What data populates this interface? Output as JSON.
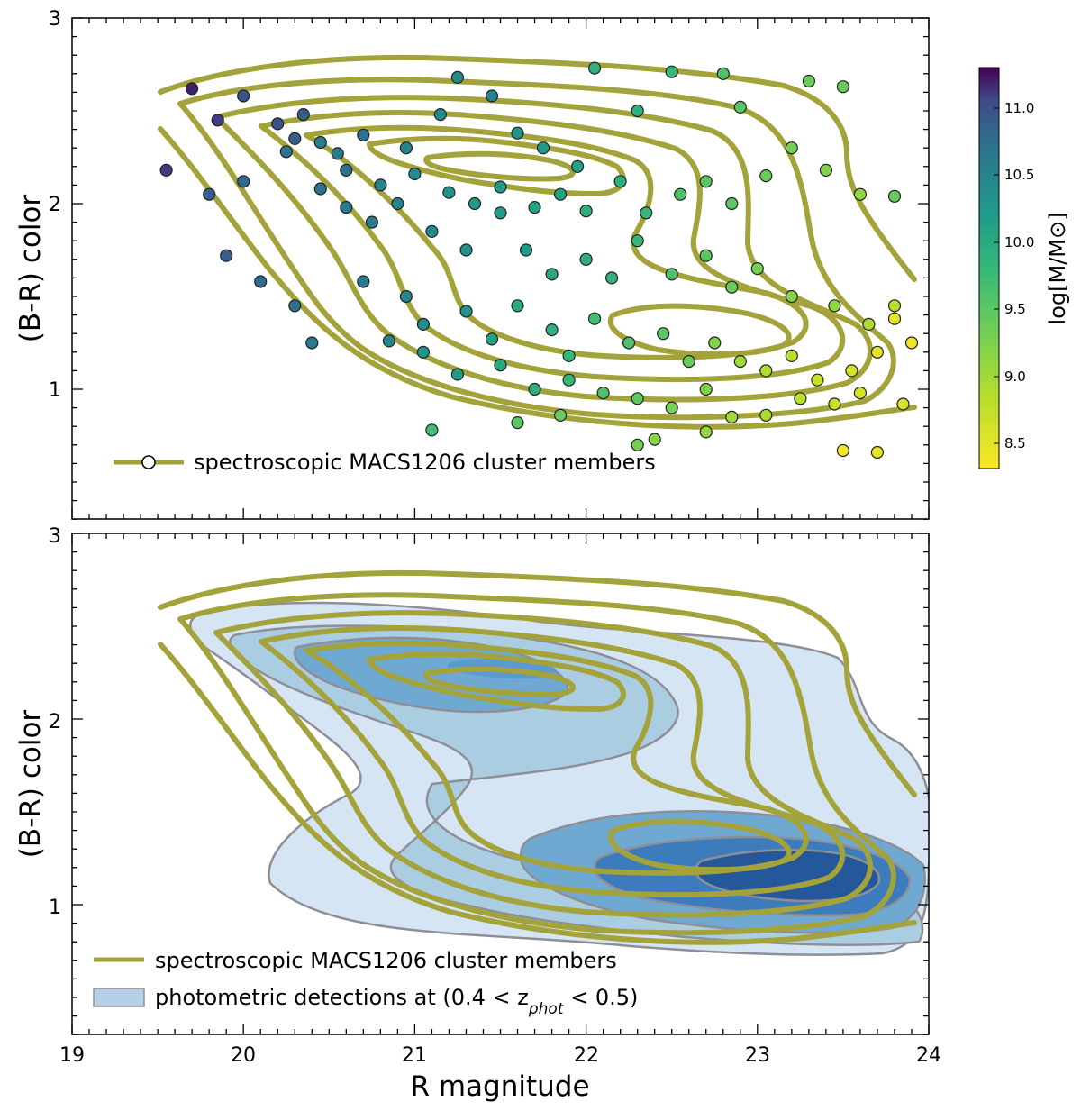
{
  "chart_data": [
    {
      "type": "scatter",
      "panel": "top",
      "xlim": [
        19,
        24
      ],
      "ylim": [
        0.3,
        3.0
      ],
      "ylabel": "(B-R) color",
      "yticks": [
        1,
        2,
        3
      ],
      "legend": {
        "label": "spectroscopic MACS1206 cluster members",
        "placement": "lower-left"
      },
      "contour_color": "#a4a33b",
      "colorbar": {
        "label": "log[M/M⊙]",
        "range": [
          8.3,
          11.3
        ],
        "ticks": [
          "8.5",
          "9.0",
          "9.5",
          "10.0",
          "10.5",
          "11.0"
        ],
        "colormap": "viridis_r"
      },
      "contour_levels": [
        [
          [
            19.5,
            2.6
          ],
          [
            20.0,
            2.72
          ],
          [
            21.0,
            2.78
          ],
          [
            22.0,
            2.75
          ],
          [
            22.8,
            2.6
          ],
          [
            23.5,
            2.3
          ],
          [
            23.8,
            1.8
          ],
          [
            23.95,
            1.4
          ]
        ],
        [
          [
            19.5,
            2.25
          ],
          [
            19.75,
            1.9
          ],
          [
            20.0,
            1.55
          ],
          [
            20.3,
            1.3
          ],
          [
            20.5,
            1.1
          ],
          [
            21.0,
            0.96
          ],
          [
            22.0,
            0.82
          ],
          [
            23.0,
            0.74
          ],
          [
            23.6,
            0.78
          ],
          [
            23.95,
            0.9
          ]
        ]
      ],
      "points": [
        [
          19.7,
          2.62,
          11.2
        ],
        [
          19.85,
          2.45,
          11.1
        ],
        [
          20.0,
          2.58,
          11.0
        ],
        [
          20.2,
          2.43,
          11.0
        ],
        [
          20.35,
          2.48,
          10.9
        ],
        [
          19.55,
          2.18,
          11.1
        ],
        [
          19.8,
          2.05,
          10.9
        ],
        [
          20.0,
          2.12,
          10.8
        ],
        [
          20.25,
          2.28,
          10.7
        ],
        [
          20.55,
          2.27,
          10.6
        ],
        [
          20.7,
          2.37,
          10.7
        ],
        [
          20.95,
          2.3,
          10.5
        ],
        [
          21.15,
          2.48,
          10.4
        ],
        [
          21.25,
          2.68,
          10.4
        ],
        [
          21.45,
          2.58,
          10.5
        ],
        [
          21.6,
          2.38,
          10.3
        ],
        [
          21.75,
          2.3,
          10.2
        ],
        [
          21.95,
          2.2,
          10.1
        ],
        [
          22.05,
          2.73,
          9.9
        ],
        [
          22.3,
          2.5,
          9.9
        ],
        [
          22.5,
          2.71,
          9.8
        ],
        [
          22.8,
          2.7,
          9.6
        ],
        [
          22.9,
          2.52,
          9.5
        ],
        [
          23.3,
          2.66,
          9.4
        ],
        [
          23.5,
          2.63,
          9.4
        ],
        [
          20.3,
          2.35,
          10.9
        ],
        [
          20.45,
          2.33,
          10.6
        ],
        [
          20.6,
          2.18,
          10.7
        ],
        [
          20.8,
          2.1,
          10.5
        ],
        [
          21.0,
          2.16,
          10.4
        ],
        [
          21.2,
          2.06,
          10.3
        ],
        [
          21.35,
          2.0,
          10.2
        ],
        [
          21.5,
          2.09,
          10.2
        ],
        [
          21.7,
          1.98,
          10.1
        ],
        [
          21.85,
          2.05,
          10.1
        ],
        [
          22.0,
          1.96,
          9.9
        ],
        [
          22.2,
          2.12,
          9.9
        ],
        [
          22.35,
          1.95,
          9.8
        ],
        [
          22.55,
          2.05,
          9.6
        ],
        [
          22.7,
          2.12,
          9.5
        ],
        [
          22.85,
          2.0,
          9.5
        ],
        [
          23.05,
          2.15,
          9.4
        ],
        [
          23.2,
          2.3,
          9.3
        ],
        [
          23.4,
          2.18,
          9.2
        ],
        [
          23.6,
          2.05,
          9.1
        ],
        [
          20.45,
          2.08,
          10.7
        ],
        [
          20.6,
          1.98,
          10.6
        ],
        [
          20.75,
          1.9,
          10.6
        ],
        [
          20.9,
          2.0,
          10.5
        ],
        [
          21.1,
          1.85,
          10.4
        ],
        [
          21.3,
          1.75,
          10.3
        ],
        [
          21.5,
          1.95,
          10.2
        ],
        [
          21.65,
          1.75,
          10.2
        ],
        [
          21.8,
          1.62,
          10.0
        ],
        [
          22.0,
          1.7,
          9.9
        ],
        [
          22.15,
          1.6,
          9.9
        ],
        [
          22.3,
          1.8,
          9.8
        ],
        [
          22.5,
          1.62,
          9.6
        ],
        [
          22.7,
          1.72,
          9.5
        ],
        [
          22.85,
          1.55,
          9.4
        ],
        [
          23.0,
          1.65,
          9.3
        ],
        [
          23.2,
          1.5,
          9.2
        ],
        [
          23.45,
          1.45,
          9.1
        ],
        [
          23.65,
          1.35,
          8.9
        ],
        [
          23.8,
          1.45,
          8.8
        ],
        [
          19.9,
          1.72,
          10.9
        ],
        [
          20.1,
          1.58,
          10.8
        ],
        [
          20.3,
          1.45,
          10.7
        ],
        [
          20.4,
          1.25,
          10.6
        ],
        [
          20.7,
          1.58,
          10.6
        ],
        [
          20.95,
          1.5,
          10.5
        ],
        [
          21.05,
          1.35,
          10.4
        ],
        [
          21.3,
          1.42,
          10.3
        ],
        [
          21.45,
          1.27,
          10.1
        ],
        [
          21.6,
          1.45,
          10.0
        ],
        [
          21.8,
          1.32,
          9.9
        ],
        [
          21.9,
          1.18,
          9.8
        ],
        [
          22.05,
          1.38,
          9.7
        ],
        [
          22.25,
          1.25,
          9.6
        ],
        [
          22.45,
          1.3,
          9.5
        ],
        [
          22.6,
          1.15,
          9.4
        ],
        [
          22.75,
          1.25,
          9.2
        ],
        [
          22.9,
          1.15,
          9.0
        ],
        [
          23.05,
          1.1,
          8.9
        ],
        [
          23.2,
          1.18,
          8.8
        ],
        [
          23.35,
          1.05,
          8.7
        ],
        [
          23.55,
          1.1,
          8.6
        ],
        [
          23.7,
          1.2,
          8.5
        ],
        [
          23.9,
          1.25,
          8.4
        ],
        [
          23.8,
          1.38,
          8.5
        ],
        [
          20.85,
          1.26,
          10.5
        ],
        [
          21.05,
          1.2,
          10.3
        ],
        [
          21.25,
          1.08,
          10.2
        ],
        [
          21.5,
          1.13,
          10.0
        ],
        [
          21.7,
          1.0,
          9.9
        ],
        [
          21.9,
          1.05,
          9.8
        ],
        [
          22.1,
          0.98,
          9.6
        ],
        [
          22.3,
          0.95,
          9.5
        ],
        [
          22.5,
          0.9,
          9.3
        ],
        [
          22.7,
          1.0,
          9.2
        ],
        [
          22.85,
          0.85,
          9.0
        ],
        [
          23.05,
          0.86,
          8.9
        ],
        [
          23.25,
          0.95,
          8.8
        ],
        [
          23.45,
          0.92,
          8.7
        ],
        [
          23.6,
          0.98,
          8.6
        ],
        [
          21.1,
          0.78,
          9.7
        ],
        [
          21.6,
          0.82,
          9.5
        ],
        [
          21.85,
          0.86,
          9.4
        ],
        [
          22.3,
          0.7,
          9.3
        ],
        [
          22.4,
          0.73,
          9.2
        ],
        [
          22.7,
          0.77,
          9.1
        ],
        [
          23.5,
          0.67,
          8.4
        ],
        [
          23.7,
          0.66,
          8.5
        ],
        [
          23.85,
          0.92,
          8.6
        ],
        [
          23.8,
          2.04,
          9.4
        ]
      ]
    },
    {
      "type": "heatmap",
      "panel": "bottom",
      "xlim": [
        19,
        24
      ],
      "ylim": [
        0.3,
        3.0
      ],
      "xlabel": "R magnitude",
      "ylabel": "(B-R) color",
      "xticks": [
        19,
        20,
        21,
        22,
        23,
        24
      ],
      "yticks": [
        1,
        2,
        3
      ],
      "legend": [
        {
          "label": "spectroscopic MACS1206 cluster members",
          "kind": "line",
          "color": "#a4a33b"
        },
        {
          "label_main": "photometric detections at (0.4 < z",
          "label_sub": "phot",
          "label_tail": " < 0.5)",
          "kind": "patch",
          "color": "#b5cfe6"
        }
      ],
      "fill_colors": [
        "#d6e5f3",
        "#aacde2",
        "#6fa9d2",
        "#3d7cbc",
        "#24589a"
      ],
      "contour_color": "#a4a33b",
      "edge_color": "#8e8e96"
    }
  ]
}
